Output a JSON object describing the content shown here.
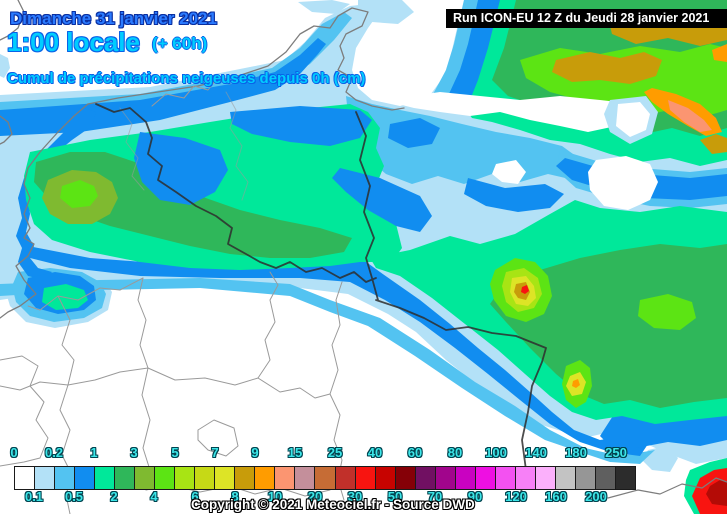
{
  "header": {
    "date": "Dimanche 31 janvier 2021",
    "time": "1:00 locale",
    "offset": "(+ 60h)",
    "subtitle": "Cumul de précipitations neigeuses depuis 0h (cm)",
    "run_info": "Run ICON-EU 12 Z du Jeudi 28 janvier 2021"
  },
  "legend": {
    "boundaries": [
      "0",
      "0.1",
      "0.2",
      "0.5",
      "1",
      "2",
      "3",
      "4",
      "5",
      "6",
      "7",
      "8",
      "9",
      "10",
      "15",
      "20",
      "25",
      "30",
      "40",
      "50",
      "60",
      "70",
      "80",
      "90",
      "100",
      "120",
      "140",
      "160",
      "180",
      "200",
      "250"
    ],
    "cell_colors": [
      "#ffffff",
      "#b3e1f7",
      "#53c3f1",
      "#118df0",
      "#00e89a",
      "#2fb75a",
      "#7fba30",
      "#5ce414",
      "#a8e414",
      "#c6d916",
      "#dde426",
      "#c89c0a",
      "#ff9c00",
      "#fb9571",
      "#c48f9b",
      "#c66c35",
      "#c1302a",
      "#f81410",
      "#c70300",
      "#850007",
      "#711062",
      "#a1058c",
      "#c902c1",
      "#ee0fe2",
      "#f351f1",
      "#f780f7",
      "#fbb0fb",
      "#c3c3c3",
      "#969696",
      "#5f5f5f",
      "#2c2c2c"
    ],
    "copyright": "Copyright © 2021 Meteociel.fr - Source DWD"
  },
  "palette": {
    "white": "#ffffff",
    "lightblue": "#b3e1f7",
    "cyan": "#53c3f1",
    "blue": "#118df0",
    "green_spring": "#00e89a",
    "green_sea": "#2fb75a",
    "green_olive": "#7fba30",
    "green_bright": "#5ce414",
    "yellowgreen": "#a8e414",
    "yellow": "#dde426",
    "mustard": "#c89c0a",
    "orange": "#ff9c00",
    "salmon": "#fb9571",
    "red": "#f81410",
    "darkred": "#b40b06",
    "border_coast": "#7d7d7d",
    "border_dept": "#9a9a9a",
    "border_national": "#2e2e2e"
  }
}
